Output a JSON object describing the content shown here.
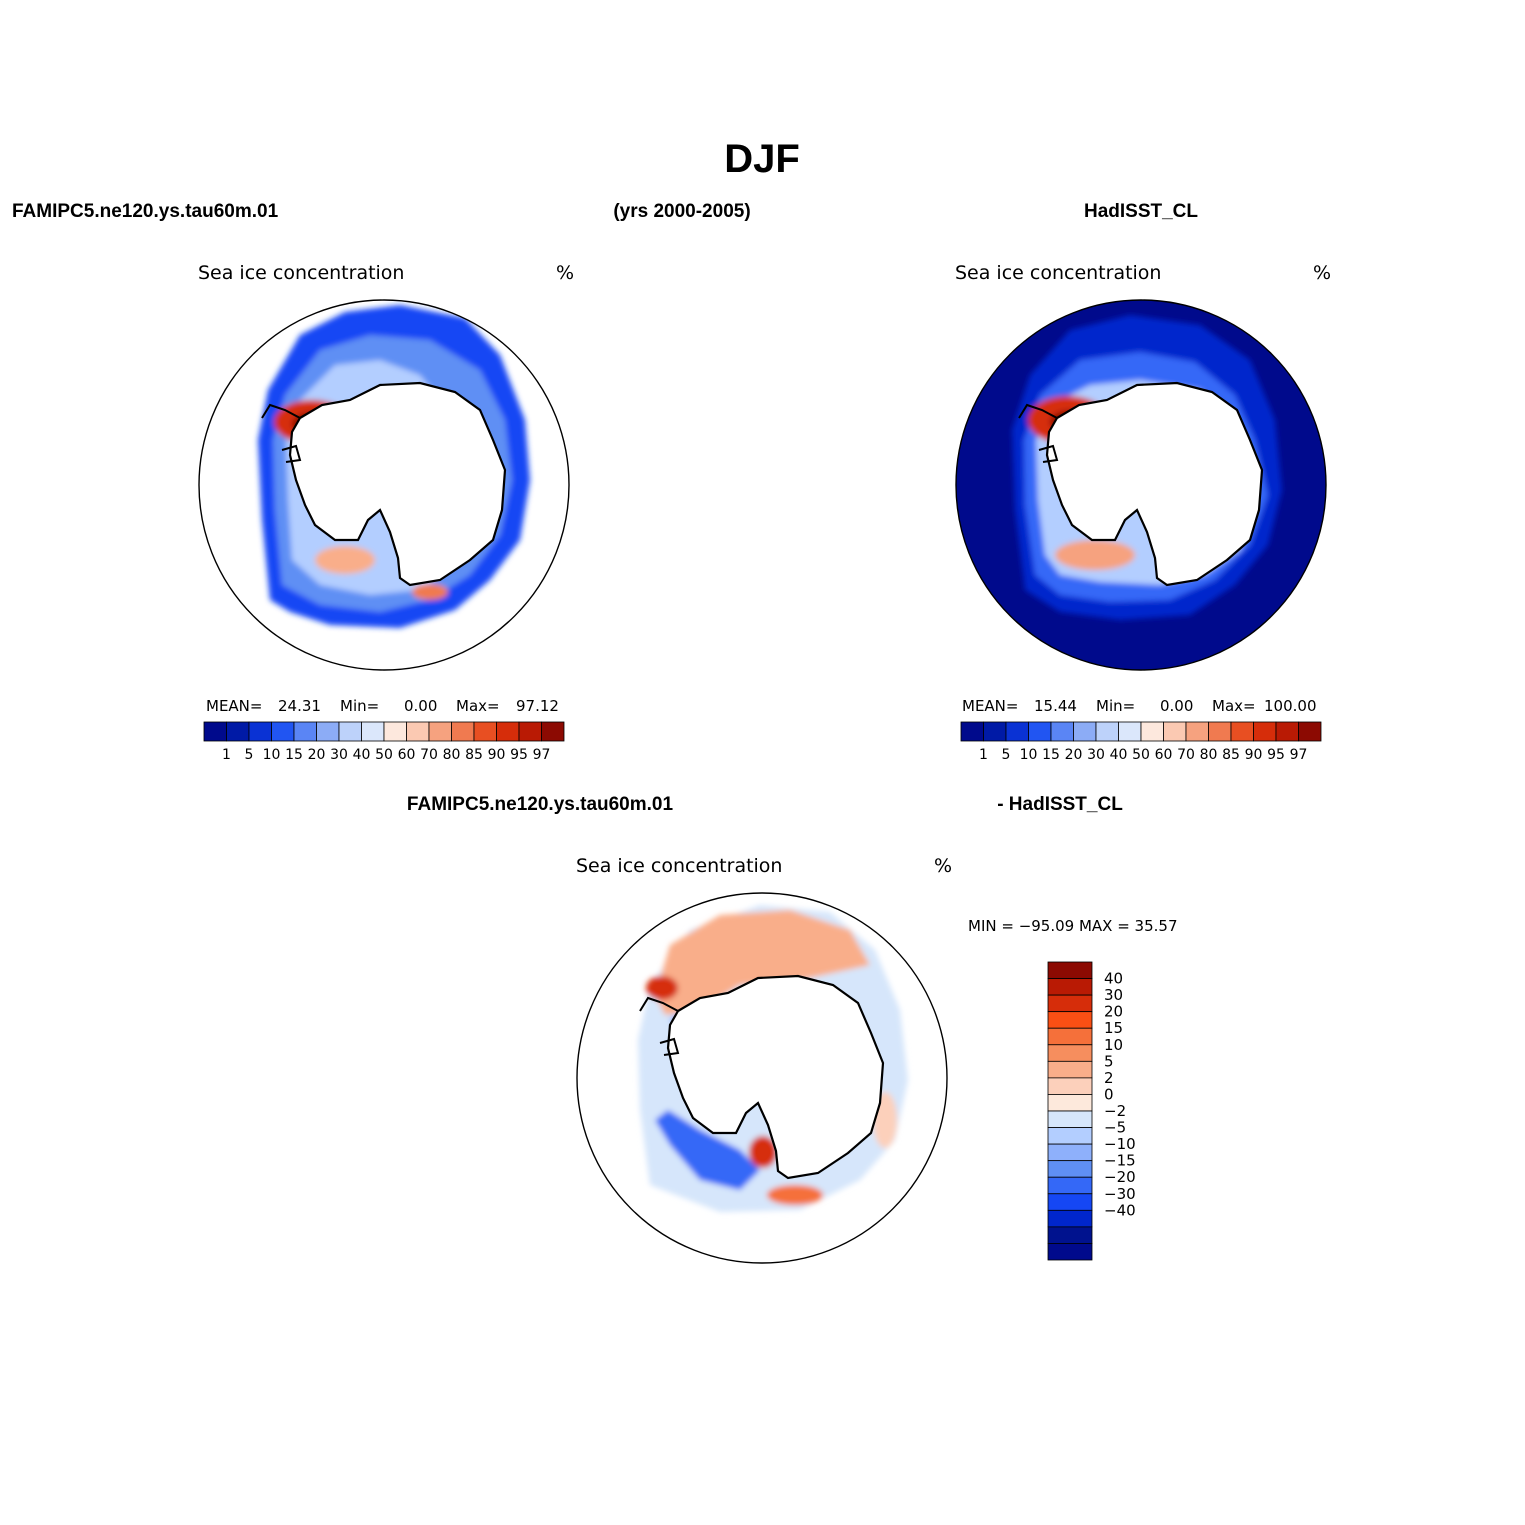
{
  "header": {
    "title": "DJF",
    "left_label": "FAMIPC5.ne120.ys.tau60m.01",
    "center_label": "(yrs 2000-2005)",
    "right_label": "HadISST_CL",
    "diff_left_label": "FAMIPC5.ne120.ys.tau60m.01",
    "diff_right_label": "- HadISST_CL"
  },
  "colors": {
    "seq": [
      "#000a8c",
      "#001aa6",
      "#0a32d4",
      "#2155f2",
      "#5a85f5",
      "#8cacf6",
      "#bdd2fa",
      "#dbe7fb",
      "#fde8dd",
      "#fbc9b2",
      "#f6a27f",
      "#f07a50",
      "#e84f22",
      "#d62d0a",
      "#b91a04",
      "#8c0a02"
    ],
    "div": [
      "#8c0a02",
      "#b91a04",
      "#d62d0a",
      "#fa4f14",
      "#f5703a",
      "#f68e5e",
      "#f9ae8a",
      "#fcd0bb",
      "#fde9dc",
      "#d6e6fb",
      "#b3ceff",
      "#8eb0fb",
      "#5f8ff4",
      "#3468f7",
      "#1547f4",
      "#0026cc",
      "#00128e",
      "#000a8c"
    ]
  },
  "chart_data": [
    {
      "type": "heatmap",
      "id": "model",
      "title": "Sea ice concentration",
      "units": "%",
      "stats": {
        "mean_label": "MEAN=",
        "mean": "24.31",
        "min_label": "Min=",
        "min": "0.00",
        "max_label": "Max=",
        "max": "97.12"
      },
      "levels": [
        "1",
        "5",
        "10",
        "15",
        "20",
        "30",
        "40",
        "50",
        "60",
        "70",
        "80",
        "85",
        "90",
        "95",
        "97"
      ]
    },
    {
      "type": "heatmap",
      "id": "obs",
      "title": "Sea ice concentration",
      "units": "%",
      "stats": {
        "mean_label": "MEAN=",
        "mean": "15.44",
        "min_label": "Min=",
        "min": "0.00",
        "max_label": "Max=",
        "max": "100.00"
      },
      "levels": [
        "1",
        "5",
        "10",
        "15",
        "20",
        "30",
        "40",
        "50",
        "60",
        "70",
        "80",
        "85",
        "90",
        "95",
        "97"
      ]
    },
    {
      "type": "heatmap",
      "id": "diff",
      "title": "Sea ice concentration",
      "units": "%",
      "stats_text": "MIN = −95.09  MAX =   35.57",
      "levels": [
        "40",
        "30",
        "20",
        "15",
        "10",
        "5",
        "2",
        "0",
        "−2",
        "−5",
        "−10",
        "−15",
        "−20",
        "−30",
        "−40"
      ]
    }
  ]
}
